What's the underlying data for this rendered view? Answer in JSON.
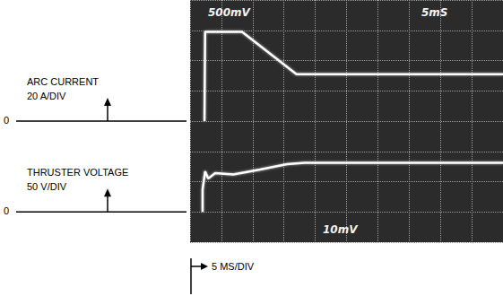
{
  "chart_data": {
    "type": "line",
    "xlabel": "5 MS/DIV",
    "ylabel": "20 A/DIV",
    "y2label": "50 V/DIV",
    "zero_label": "0",
    "annotations": [
      "500mV",
      "5mS",
      "10mV"
    ],
    "xlim": [
      0,
      50
    ],
    "xticks": [
      0,
      5,
      10,
      15,
      20,
      25,
      30,
      35,
      40,
      45,
      50
    ],
    "ylim": [
      -80,
      80
    ],
    "yticks": [
      -80,
      -60,
      -40,
      -20,
      0,
      20,
      40,
      60,
      80
    ],
    "y2lim": [
      -50,
      350
    ],
    "y2ticks": [
      -50,
      0,
      50,
      100,
      150,
      200,
      250,
      300,
      350
    ],
    "grid": true,
    "tick_labels": false,
    "line_style": "solid",
    "series": [
      {
        "name": "ARC CURRENT",
        "color": "#ffffff",
        "x": [
          2.3,
          2.4,
          8.3,
          17.0,
          50
        ],
        "values": [
          0,
          59,
          59,
          31,
          31
        ]
      },
      {
        "name": "THRUSTER VOLTAGE",
        "color": "#ffffff",
        "axis": "y2",
        "x": [
          2.0,
          2.0,
          2.4,
          2.9,
          4.0,
          6.9,
          11.2,
          15.5,
          18.3,
          50
        ],
        "values": [
          0,
          37,
          67,
          55,
          64,
          62,
          70,
          79,
          81,
          81
        ]
      }
    ]
  }
}
